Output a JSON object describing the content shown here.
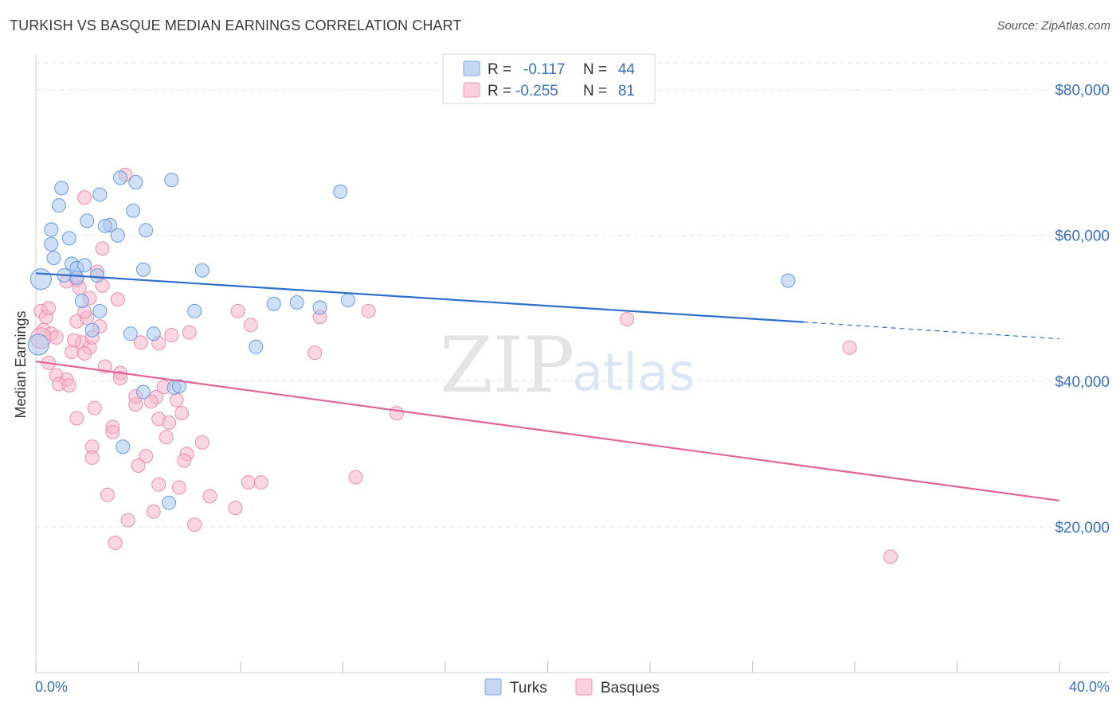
{
  "header": {
    "title": "TURKISH VS BASQUE MEDIAN EARNINGS CORRELATION CHART",
    "source": "Source: ZipAtlas.com"
  },
  "watermark": {
    "zip": "ZIP",
    "atlas": "atlas"
  },
  "legend": {
    "rows": [
      {
        "r_label": "R =",
        "r_value": "-0.117",
        "n_label": "N =",
        "n_value": "44",
        "color": "#a9c6ef"
      },
      {
        "r_label": "R =",
        "r_value": "-0.255",
        "n_label": "N =",
        "n_value": "81",
        "color": "#f5b7cb"
      }
    ]
  },
  "bottom_legend": {
    "turks": "Turks",
    "basques": "Basques"
  },
  "colors": {
    "turks_fill": "#a9c6ef",
    "turks_stroke": "#6a9be0",
    "turks_line": "#2f6fcc",
    "basques_fill": "#f5b7cb",
    "basques_stroke": "#ec8fb0",
    "basques_line": "#e0669a",
    "accent": "#3b6fc4"
  },
  "chart_data": {
    "type": "scatter",
    "title": "TURKISH VS BASQUE MEDIAN EARNINGS CORRELATION CHART",
    "xlabel": "",
    "ylabel": "Median Earnings",
    "xlim": [
      0,
      40
    ],
    "ylim": [
      0,
      84000
    ],
    "x_tick_labels": {
      "left": "0.0%",
      "right": "40.0%"
    },
    "y_ticks": [
      {
        "value": 20000,
        "label": "$20,000"
      },
      {
        "value": 40000,
        "label": "$40,000"
      },
      {
        "value": 60000,
        "label": "$60,000"
      },
      {
        "value": 80000,
        "label": "$80,000"
      }
    ],
    "series": [
      {
        "name": "Turks",
        "r": -0.117,
        "n": 44,
        "trend": {
          "x_start": 0,
          "y_start": 54800,
          "x_solid_end": 30,
          "y_solid_end": 48100,
          "x_end": 40,
          "y_end": 45800
        },
        "points": [
          [
            0.2,
            54000
          ],
          [
            0.6,
            58800
          ],
          [
            0.9,
            64100
          ],
          [
            0.6,
            60800
          ],
          [
            1.3,
            59600
          ],
          [
            1.0,
            66500
          ],
          [
            0.7,
            56900
          ],
          [
            1.4,
            56100
          ],
          [
            1.6,
            55500
          ],
          [
            2.0,
            62000
          ],
          [
            1.9,
            55900
          ],
          [
            1.1,
            54500
          ],
          [
            2.5,
            65600
          ],
          [
            2.4,
            54500
          ],
          [
            2.9,
            61400
          ],
          [
            2.7,
            61300
          ],
          [
            3.2,
            60000
          ],
          [
            3.3,
            67900
          ],
          [
            3.8,
            63400
          ],
          [
            3.9,
            67300
          ],
          [
            4.3,
            60700
          ],
          [
            4.2,
            55300
          ],
          [
            5.3,
            67600
          ],
          [
            6.5,
            55200
          ],
          [
            1.8,
            51000
          ],
          [
            2.5,
            49600
          ],
          [
            2.2,
            47000
          ],
          [
            3.7,
            46500
          ],
          [
            4.6,
            46500
          ],
          [
            6.2,
            49600
          ],
          [
            8.6,
            44700
          ],
          [
            9.3,
            50600
          ],
          [
            10.2,
            50800
          ],
          [
            11.1,
            50100
          ],
          [
            12.2,
            51100
          ],
          [
            11.9,
            66000
          ],
          [
            4.2,
            38500
          ],
          [
            5.4,
            39100
          ],
          [
            5.6,
            39300
          ],
          [
            3.4,
            31000
          ],
          [
            5.2,
            23300
          ],
          [
            1.6,
            54200
          ],
          [
            29.4,
            53800
          ],
          [
            0.1,
            45000
          ]
        ]
      },
      {
        "name": "Basques",
        "r": -0.255,
        "n": 81,
        "trend": {
          "x_start": 0,
          "y_start": 42700,
          "x_end": 40,
          "y_end": 23600
        },
        "points": [
          [
            0.2,
            49600
          ],
          [
            0.4,
            48800
          ],
          [
            0.3,
            47000
          ],
          [
            0.6,
            46500
          ],
          [
            0.2,
            45900
          ],
          [
            0.8,
            46000
          ],
          [
            0.5,
            42500
          ],
          [
            0.8,
            40800
          ],
          [
            1.2,
            40200
          ],
          [
            0.9,
            39600
          ],
          [
            1.3,
            39400
          ],
          [
            1.4,
            44000
          ],
          [
            1.6,
            48200
          ],
          [
            1.8,
            45300
          ],
          [
            2.1,
            44600
          ],
          [
            1.9,
            43800
          ],
          [
            2.2,
            46000
          ],
          [
            2.0,
            48700
          ],
          [
            1.2,
            53700
          ],
          [
            1.6,
            53900
          ],
          [
            1.7,
            52800
          ],
          [
            2.1,
            51400
          ],
          [
            2.4,
            55000
          ],
          [
            2.6,
            53100
          ],
          [
            2.6,
            58200
          ],
          [
            1.9,
            65200
          ],
          [
            3.2,
            51200
          ],
          [
            2.5,
            47500
          ],
          [
            3.5,
            68300
          ],
          [
            4.1,
            45300
          ],
          [
            4.8,
            45200
          ],
          [
            5.0,
            39200
          ],
          [
            5.5,
            37400
          ],
          [
            4.7,
            37800
          ],
          [
            3.9,
            36800
          ],
          [
            2.3,
            36300
          ],
          [
            1.6,
            34900
          ],
          [
            3.0,
            33700
          ],
          [
            3.0,
            33000
          ],
          [
            3.3,
            41100
          ],
          [
            3.3,
            40400
          ],
          [
            5.7,
            35600
          ],
          [
            4.8,
            34800
          ],
          [
            5.2,
            34300
          ],
          [
            5.1,
            32300
          ],
          [
            6.5,
            31600
          ],
          [
            5.9,
            30000
          ],
          [
            5.8,
            29100
          ],
          [
            2.2,
            31000
          ],
          [
            2.2,
            29500
          ],
          [
            4.3,
            29700
          ],
          [
            4.0,
            28400
          ],
          [
            4.8,
            25800
          ],
          [
            5.6,
            25400
          ],
          [
            2.8,
            24400
          ],
          [
            4.6,
            22100
          ],
          [
            3.6,
            20900
          ],
          [
            6.2,
            20300
          ],
          [
            6.8,
            24200
          ],
          [
            7.8,
            22600
          ],
          [
            8.3,
            26100
          ],
          [
            8.8,
            26100
          ],
          [
            3.1,
            17800
          ],
          [
            7.9,
            49600
          ],
          [
            8.4,
            47700
          ],
          [
            11.1,
            48800
          ],
          [
            10.9,
            43900
          ],
          [
            13.0,
            49600
          ],
          [
            14.1,
            35600
          ],
          [
            12.5,
            26800
          ],
          [
            23.1,
            48500
          ],
          [
            31.8,
            44600
          ],
          [
            33.4,
            15900
          ],
          [
            6.0,
            46700
          ],
          [
            5.3,
            46300
          ],
          [
            3.9,
            37900
          ],
          [
            1.9,
            49500
          ],
          [
            0.5,
            50000
          ],
          [
            1.5,
            45600
          ],
          [
            2.7,
            42000
          ],
          [
            4.5,
            37200
          ]
        ]
      }
    ]
  }
}
